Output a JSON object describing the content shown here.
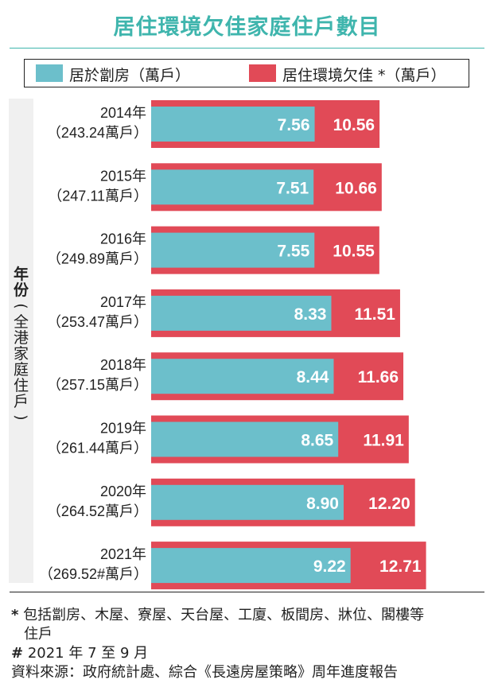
{
  "title": "居住環境欠佳家庭住戶數目",
  "legend": [
    {
      "label": "居於劏房（萬戶）",
      "color": "#6cbfcb"
    },
    {
      "label": "居住環境欠佳 *（萬戶）",
      "color": "#e14a57"
    }
  ],
  "y_title": {
    "main": "年份",
    "sub": "全港家庭住戶"
  },
  "chart_data": {
    "type": "bar",
    "orientation": "horizontal",
    "categories": [
      {
        "year": "2014年",
        "households": "（243.24萬戶）"
      },
      {
        "year": "2015年",
        "households": "（247.11萬戶）"
      },
      {
        "year": "2016年",
        "households": "（249.89萬戶）"
      },
      {
        "year": "2017年",
        "households": "（253.47萬戶）"
      },
      {
        "year": "2018年",
        "households": "（257.15萬戶）"
      },
      {
        "year": "2019年",
        "households": "（261.44萬戶）"
      },
      {
        "year": "2020年",
        "households": "（264.52萬戶）"
      },
      {
        "year": "2021年",
        "households": "（269.52#萬戶）"
      }
    ],
    "series": [
      {
        "name": "居於劏房（萬戶）",
        "color": "#6cbfcb",
        "values": [
          7.56,
          7.51,
          7.55,
          8.33,
          8.44,
          8.65,
          8.9,
          9.22
        ],
        "labels": [
          "7.56",
          "7.51",
          "7.55",
          "8.33",
          "8.44",
          "8.65",
          "8.90",
          "9.22"
        ]
      },
      {
        "name": "居住環境欠佳 *（萬戶）",
        "color": "#e14a57",
        "values": [
          10.56,
          10.66,
          10.55,
          11.51,
          11.66,
          11.91,
          12.2,
          12.71
        ],
        "labels": [
          "10.56",
          "10.66",
          "10.55",
          "11.51",
          "11.66",
          "11.91",
          "12.20",
          "12.71"
        ]
      }
    ]
  },
  "notes": [
    {
      "mark": "*",
      "text": "包括劏房、木屋、寮屋、天台屋、工廈、板間房、牀位、閣樓等"
    },
    {
      "mark": "",
      "text": "住戶"
    },
    {
      "mark": "#",
      "text": "2021 年 7 至 9 月"
    },
    {
      "mark": "",
      "text": "資料來源：政府統計處、綜合《長遠房屋策略》周年進度報告"
    }
  ]
}
